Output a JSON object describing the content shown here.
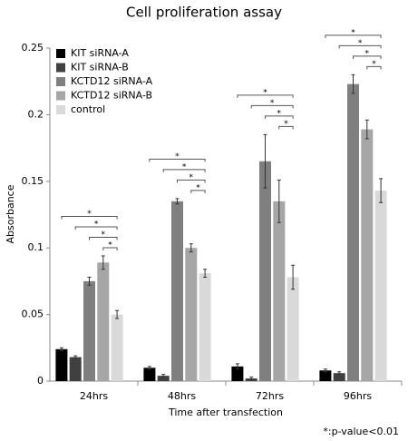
{
  "chart_data": {
    "type": "bar",
    "title": "Cell proliferation assay",
    "x_label": "Time after transfection",
    "y_label": "Absorbance",
    "categories": [
      "24hrs",
      "48hrs",
      "72hrs",
      "96hrs"
    ],
    "series": [
      {
        "name": "KIT siRNA-A",
        "color": "#000000",
        "values": [
          0.024,
          0.01,
          0.011,
          0.008
        ],
        "errors": [
          0.001,
          0.001,
          0.002,
          0.001
        ]
      },
      {
        "name": "KIT siRNA-B",
        "color": "#404040",
        "values": [
          0.018,
          0.004,
          0.002,
          0.006
        ],
        "errors": [
          0.001,
          0.001,
          0.001,
          0.001
        ]
      },
      {
        "name": "KCTD12 siRNA-A",
        "color": "#7f7f7f",
        "values": [
          0.075,
          0.135,
          0.165,
          0.223
        ],
        "errors": [
          0.003,
          0.002,
          0.02,
          0.007
        ]
      },
      {
        "name": "KCTD12 siRNA-B",
        "color": "#a6a6a6",
        "values": [
          0.089,
          0.1,
          0.135,
          0.189
        ],
        "errors": [
          0.005,
          0.003,
          0.016,
          0.007
        ]
      },
      {
        "name": "control",
        "color": "#d9d9d9",
        "values": [
          0.05,
          0.081,
          0.078,
          0.143
        ],
        "errors": [
          0.003,
          0.003,
          0.009,
          0.009
        ]
      }
    ],
    "ylim": [
      0,
      0.25
    ],
    "yticks": [
      0,
      0.05,
      0.1,
      0.15,
      0.2,
      0.25
    ],
    "legend": "top-left",
    "significance_marker": "*",
    "footnote": "*:p-value<0.01"
  }
}
